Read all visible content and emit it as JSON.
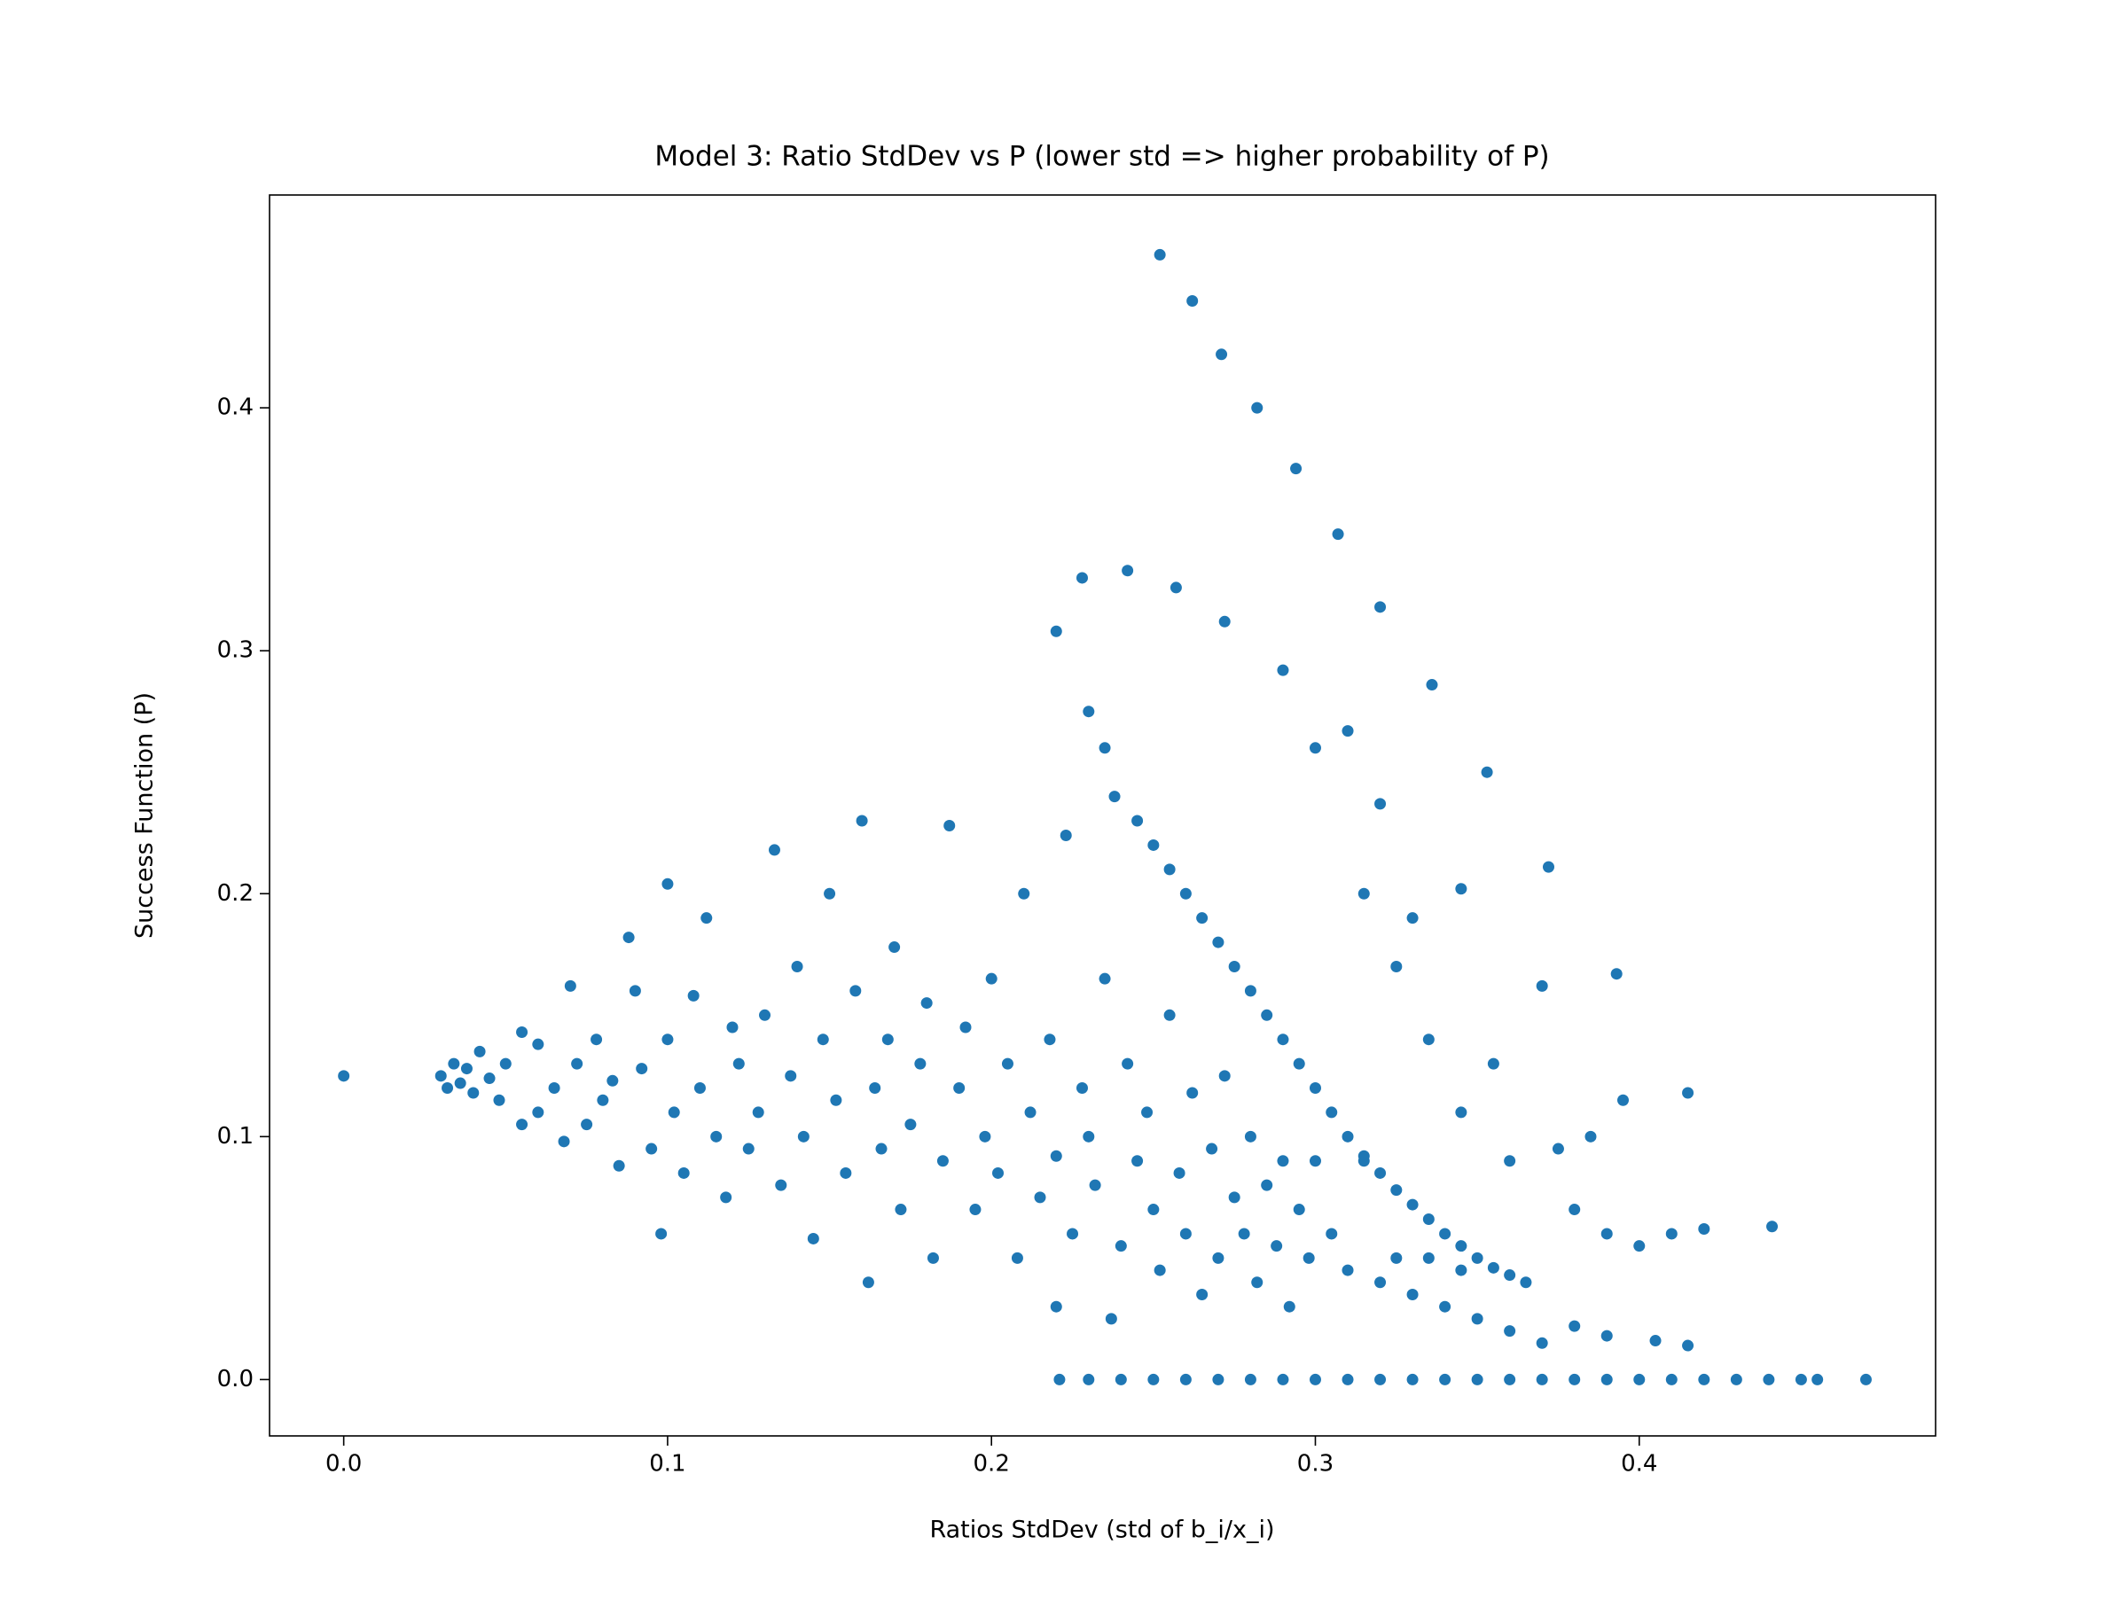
{
  "chart_data": {
    "type": "scatter",
    "title": "Model 3: Ratio StdDev vs P (lower std => higher probability of P)",
    "xlabel": "Ratios StdDev (std of b_i/x_i)",
    "ylabel": "Success Function (P)",
    "color": "#1f77b4",
    "xlim": [
      -0.0229,
      0.4915
    ],
    "ylim": [
      -0.0232,
      0.4876
    ],
    "xticks": [
      {
        "value": 0,
        "label": "0.0"
      },
      0.1,
      0.2,
      0.3,
      0.4
    ],
    "yticks": [
      {
        "value": 0,
        "label": "0.0"
      },
      0.1,
      0.2,
      0.3,
      0.4
    ],
    "x": [
      0,
      0.03,
      0.032,
      0.034,
      0.036,
      0.038,
      0.04,
      0.042,
      0.045,
      0.048,
      0.05,
      0.055,
      0.055,
      0.06,
      0.06,
      0.065,
      0.068,
      0.07,
      0.072,
      0.075,
      0.078,
      0.08,
      0.083,
      0.085,
      0.088,
      0.09,
      0.092,
      0.095,
      0.098,
      0.1,
      0.1,
      0.102,
      0.105,
      0.108,
      0.11,
      0.112,
      0.115,
      0.118,
      0.12,
      0.122,
      0.125,
      0.128,
      0.13,
      0.133,
      0.135,
      0.138,
      0.14,
      0.142,
      0.145,
      0.148,
      0.15,
      0.152,
      0.155,
      0.158,
      0.16,
      0.162,
      0.164,
      0.166,
      0.168,
      0.17,
      0.172,
      0.175,
      0.178,
      0.18,
      0.182,
      0.185,
      0.187,
      0.19,
      0.192,
      0.195,
      0.198,
      0.2,
      0.202,
      0.205,
      0.208,
      0.21,
      0.212,
      0.215,
      0.218,
      0.22,
      0.22,
      0.223,
      0.225,
      0.228,
      0.23,
      0.232,
      0.235,
      0.237,
      0.24,
      0.242,
      0.245,
      0.248,
      0.25,
      0.252,
      0.255,
      0.258,
      0.26,
      0.262,
      0.265,
      0.268,
      0.27,
      0.272,
      0.275,
      0.278,
      0.28,
      0.282,
      0.285,
      0.288,
      0.29,
      0.292,
      0.295,
      0.298,
      0.3,
      0.305,
      0.31,
      0.315,
      0.32,
      0.325,
      0.33,
      0.335,
      0.34,
      0.345,
      0.35,
      0.36,
      0.37,
      0.38,
      0.39,
      0.405,
      0.415,
      0.22,
      0.228,
      0.23,
      0.235,
      0.238,
      0.242,
      0.245,
      0.25,
      0.255,
      0.257,
      0.26,
      0.265,
      0.27,
      0.272,
      0.275,
      0.28,
      0.285,
      0.29,
      0.295,
      0.3,
      0.305,
      0.31,
      0.315,
      0.32,
      0.325,
      0.33,
      0.335,
      0.34,
      0.345,
      0.35,
      0.355,
      0.36,
      0.365,
      0.29,
      0.3,
      0.31,
      0.315,
      0.32,
      0.325,
      0.33,
      0.335,
      0.345,
      0.345,
      0.355,
      0.36,
      0.37,
      0.375,
      0.38,
      0.385,
      0.395,
      0.39,
      0.4,
      0.41,
      0.42,
      0.252,
      0.262,
      0.271,
      0.282,
      0.294,
      0.307,
      0.32,
      0.336,
      0.353,
      0.372,
      0.393,
      0.415,
      0.441,
      0.47,
      0.221,
      0.23,
      0.24,
      0.25,
      0.26,
      0.27,
      0.28,
      0.29,
      0.3,
      0.31,
      0.32,
      0.33,
      0.34,
      0.35,
      0.36,
      0.37,
      0.38,
      0.39,
      0.4,
      0.41,
      0.42,
      0.43,
      0.44,
      0.45,
      0.455
    ],
    "values": [
      0.125,
      0.125,
      0.12,
      0.13,
      0.122,
      0.128,
      0.118,
      0.135,
      0.124,
      0.115,
      0.13,
      0.143,
      0.105,
      0.138,
      0.11,
      0.12,
      0.098,
      0.162,
      0.13,
      0.105,
      0.14,
      0.115,
      0.123,
      0.088,
      0.182,
      0.16,
      0.128,
      0.095,
      0.06,
      0.204,
      0.14,
      0.11,
      0.085,
      0.158,
      0.12,
      0.19,
      0.1,
      0.075,
      0.145,
      0.13,
      0.095,
      0.11,
      0.15,
      0.218,
      0.08,
      0.125,
      0.17,
      0.1,
      0.058,
      0.14,
      0.2,
      0.115,
      0.085,
      0.16,
      0.23,
      0.04,
      0.12,
      0.095,
      0.14,
      0.178,
      0.07,
      0.105,
      0.13,
      0.155,
      0.05,
      0.09,
      0.228,
      0.12,
      0.145,
      0.07,
      0.1,
      0.165,
      0.085,
      0.13,
      0.05,
      0.2,
      0.11,
      0.075,
      0.14,
      0.092,
      0.03,
      0.224,
      0.06,
      0.12,
      0.1,
      0.08,
      0.165,
      0.025,
      0.055,
      0.13,
      0.09,
      0.11,
      0.07,
      0.045,
      0.15,
      0.085,
      0.06,
      0.118,
      0.035,
      0.095,
      0.05,
      0.125,
      0.075,
      0.06,
      0.1,
      0.04,
      0.08,
      0.055,
      0.09,
      0.03,
      0.07,
      0.05,
      0.09,
      0.06,
      0.045,
      0.09,
      0.04,
      0.05,
      0.035,
      0.05,
      0.03,
      0.045,
      0.025,
      0.02,
      0.015,
      0.022,
      0.018,
      0.016,
      0.014,
      0.308,
      0.33,
      0.275,
      0.26,
      0.24,
      0.333,
      0.23,
      0.22,
      0.21,
      0.326,
      0.2,
      0.19,
      0.18,
      0.312,
      0.17,
      0.16,
      0.15,
      0.14,
      0.13,
      0.12,
      0.11,
      0.1,
      0.092,
      0.085,
      0.078,
      0.072,
      0.066,
      0.06,
      0.055,
      0.05,
      0.046,
      0.043,
      0.04,
      0.292,
      0.26,
      0.267,
      0.2,
      0.237,
      0.17,
      0.19,
      0.14,
      0.202,
      0.11,
      0.13,
      0.09,
      0.162,
      0.095,
      0.07,
      0.1,
      0.115,
      0.06,
      0.055,
      0.06,
      0.062,
      0.463,
      0.444,
      0.422,
      0.4,
      0.375,
      0.348,
      0.318,
      0.286,
      0.25,
      0.211,
      0.167,
      0.118,
      0.063,
      0,
      0,
      0,
      0,
      0,
      0,
      0,
      0,
      0,
      0,
      0,
      0,
      0,
      0,
      0,
      0,
      0,
      0,
      0,
      0,
      0,
      0,
      0,
      0,
      0,
      0
    ]
  }
}
